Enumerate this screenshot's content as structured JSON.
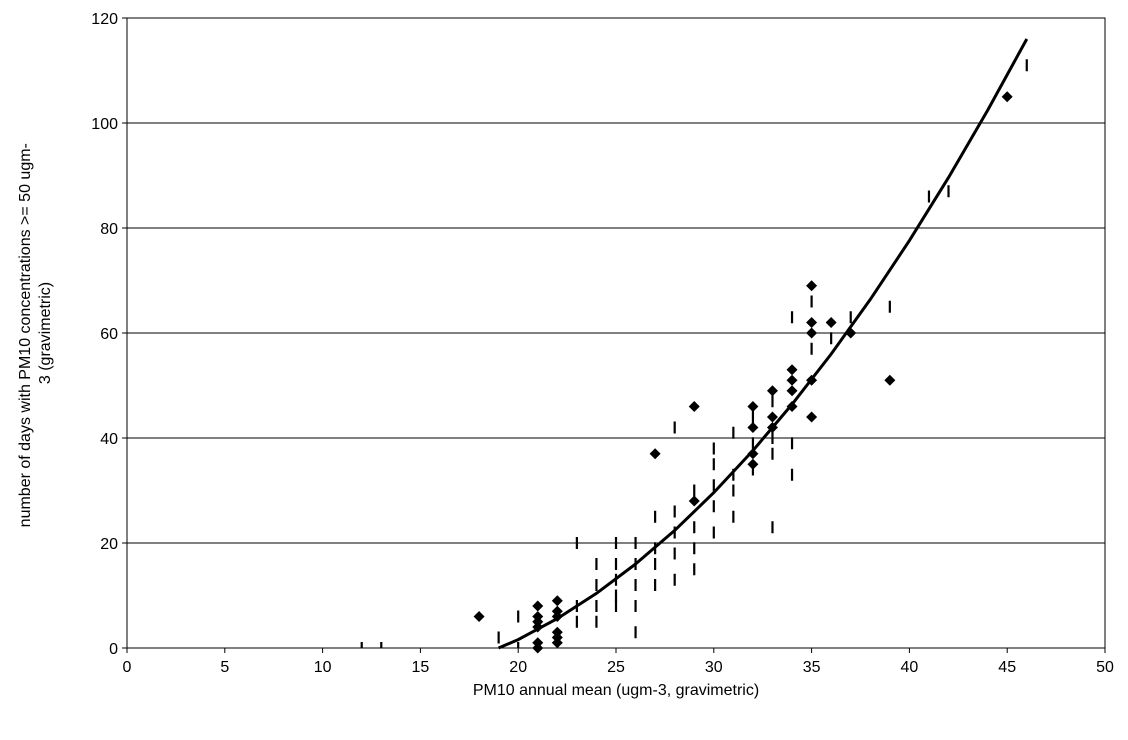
{
  "chart_data": {
    "type": "scatter",
    "title": "",
    "xlabel": "PM10 annual mean (ugm-3, gravimetric)",
    "ylabel_lines": [
      "number of days with PM10 concentrations >= 50 ugm-",
      "3 (gravimetric)"
    ],
    "xlim": [
      0,
      50
    ],
    "ylim": [
      0,
      120
    ],
    "xticks": [
      0,
      5,
      10,
      15,
      20,
      25,
      30,
      35,
      40,
      45,
      50
    ],
    "yticks": [
      0,
      20,
      40,
      60,
      80,
      100,
      120
    ],
    "grid": "horizontal",
    "legend": "none",
    "colors": {
      "marker": "#000000",
      "line": "#000000",
      "grid": "#000000"
    },
    "series": [
      {
        "type": "scatter",
        "marker": "diamond",
        "points": [
          [
            18,
            6
          ],
          [
            21,
            8
          ],
          [
            21,
            6
          ],
          [
            21,
            5
          ],
          [
            21,
            4
          ],
          [
            21,
            1
          ],
          [
            21,
            0
          ],
          [
            22,
            9
          ],
          [
            22,
            7
          ],
          [
            22,
            6
          ],
          [
            22,
            3
          ],
          [
            22,
            2
          ],
          [
            22,
            1
          ],
          [
            27,
            37
          ],
          [
            29,
            46
          ],
          [
            29,
            28
          ],
          [
            32,
            46
          ],
          [
            32,
            42
          ],
          [
            32,
            37
          ],
          [
            32,
            35
          ],
          [
            33,
            49
          ],
          [
            33,
            44
          ],
          [
            33,
            42
          ],
          [
            34,
            53
          ],
          [
            34,
            51
          ],
          [
            34,
            49
          ],
          [
            34,
            46
          ],
          [
            35,
            69
          ],
          [
            35,
            62
          ],
          [
            35,
            60
          ],
          [
            35,
            51
          ],
          [
            35,
            44
          ],
          [
            36,
            62
          ],
          [
            37,
            60
          ],
          [
            39,
            51
          ],
          [
            45,
            105
          ]
        ]
      },
      {
        "type": "dash",
        "marker": "vertical-dash",
        "points": [
          [
            12,
            0
          ],
          [
            13,
            0
          ],
          [
            19,
            2
          ],
          [
            20,
            0
          ],
          [
            20,
            6
          ],
          [
            23,
            20
          ],
          [
            23,
            8
          ],
          [
            23,
            5
          ],
          [
            24,
            16
          ],
          [
            24,
            12
          ],
          [
            24,
            8
          ],
          [
            24,
            5
          ],
          [
            25,
            20
          ],
          [
            25,
            16
          ],
          [
            25,
            13
          ],
          [
            25,
            10
          ],
          [
            25,
            8
          ],
          [
            26,
            20
          ],
          [
            26,
            16
          ],
          [
            26,
            12
          ],
          [
            26,
            8
          ],
          [
            26,
            3
          ],
          [
            27,
            25
          ],
          [
            27,
            19
          ],
          [
            27,
            16
          ],
          [
            27,
            12
          ],
          [
            28,
            42
          ],
          [
            28,
            26
          ],
          [
            28,
            22
          ],
          [
            28,
            18
          ],
          [
            28,
            13
          ],
          [
            29,
            30
          ],
          [
            29,
            23
          ],
          [
            29,
            19
          ],
          [
            29,
            15
          ],
          [
            30,
            38
          ],
          [
            30,
            35
          ],
          [
            30,
            31
          ],
          [
            30,
            27
          ],
          [
            30,
            22
          ],
          [
            31,
            41
          ],
          [
            31,
            33
          ],
          [
            31,
            30
          ],
          [
            31,
            25
          ],
          [
            32,
            44
          ],
          [
            32,
            39
          ],
          [
            32,
            34
          ],
          [
            33,
            47
          ],
          [
            33,
            40
          ],
          [
            33,
            37
          ],
          [
            33,
            23
          ],
          [
            34,
            63
          ],
          [
            34,
            39
          ],
          [
            34,
            33
          ],
          [
            35,
            66
          ],
          [
            35,
            57
          ],
          [
            36,
            59
          ],
          [
            37,
            63
          ],
          [
            39,
            65
          ],
          [
            41,
            86
          ],
          [
            42,
            87
          ],
          [
            46,
            111
          ]
        ]
      },
      {
        "type": "line",
        "fit": "polynomial",
        "points": [
          [
            19,
            0
          ],
          [
            20,
            1.6
          ],
          [
            22,
            5.6
          ],
          [
            24,
            10.4
          ],
          [
            26,
            16.0
          ],
          [
            28,
            22.4
          ],
          [
            30,
            29.6
          ],
          [
            32,
            37.6
          ],
          [
            34,
            46.4
          ],
          [
            36,
            56.0
          ],
          [
            38,
            66.4
          ],
          [
            40,
            77.6
          ],
          [
            42,
            89.6
          ],
          [
            44,
            102.4
          ],
          [
            46,
            116.0
          ]
        ]
      }
    ]
  }
}
